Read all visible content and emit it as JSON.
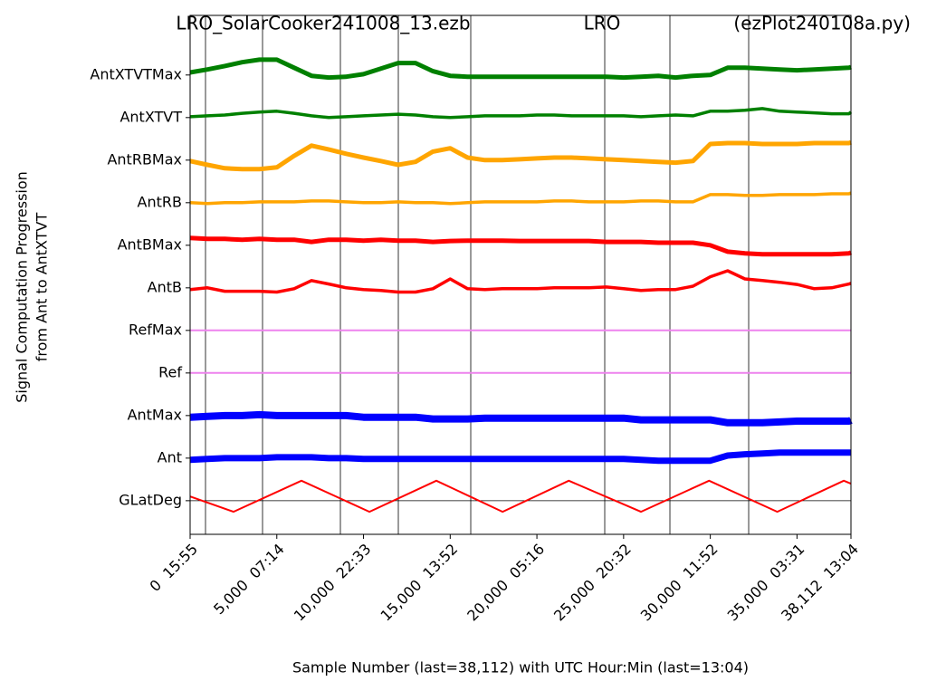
{
  "chart_data": {
    "type": "line",
    "title_left": "LRO_SolarCooker241008_13.ezb",
    "title_center": "LRO",
    "title_right": "(ezPlot240108a.py)",
    "ylabel": [
      "Signal Computation Progression",
      "from Ant to AntXTVT"
    ],
    "xlabel": "Sample Number (last=38,112) with UTC Hour:Min (last=13:04)",
    "xlim": [
      0,
      38112
    ],
    "ylim": [
      -0.79,
      11.4
    ],
    "xticks": [
      {
        "value": 0,
        "label": "0  15:55"
      },
      {
        "value": 5000,
        "label": "5,000  07:14"
      },
      {
        "value": 10000,
        "label": "10,000  22:33"
      },
      {
        "value": 15000,
        "label": "15,000  13:52"
      },
      {
        "value": 20000,
        "label": "20,000  05:16"
      },
      {
        "value": 25000,
        "label": "25,000  20:32"
      },
      {
        "value": 30000,
        "label": "30,000  11:52"
      },
      {
        "value": 35000,
        "label": "35,000  03:31"
      },
      {
        "value": 38112,
        "label": "38,112  13:04"
      }
    ],
    "yticks": [
      {
        "value": 0,
        "label": "GLatDeg"
      },
      {
        "value": 1,
        "label": "Ant"
      },
      {
        "value": 2,
        "label": "AntMax"
      },
      {
        "value": 3,
        "label": "Ref"
      },
      {
        "value": 4,
        "label": "RefMax"
      },
      {
        "value": 5,
        "label": "AntB"
      },
      {
        "value": 6,
        "label": "AntBMax"
      },
      {
        "value": 7,
        "label": "AntRB"
      },
      {
        "value": 8,
        "label": "AntRBMax"
      },
      {
        "value": 9,
        "label": "AntXTVT"
      },
      {
        "value": 10,
        "label": "AntXTVTMax"
      }
    ],
    "vlines": [
      888,
      4177,
      8667,
      12008,
      16185,
      23912,
      27671,
      32213
    ],
    "hlines": [
      0
    ],
    "x": [
      0,
      1000,
      2000,
      3000,
      4000,
      5000,
      6000,
      7000,
      8000,
      9000,
      10000,
      11000,
      12000,
      13000,
      14000,
      15000,
      16000,
      17000,
      18000,
      19000,
      20000,
      21000,
      22000,
      23000,
      24000,
      25000,
      26000,
      27000,
      28000,
      29000,
      30000,
      31000,
      32000,
      33000,
      34000,
      35000,
      36000,
      37000,
      38000,
      38112
    ],
    "series": [
      {
        "color": "#ff0000",
        "x": [
          0,
          2500,
          6420,
          10340,
          14200,
          18020,
          21840,
          26000,
          29930,
          33860,
          37700,
          38112
        ],
        "values": [
          0.1,
          -0.26,
          0.47,
          -0.26,
          0.47,
          -0.26,
          0.47,
          -0.26,
          0.47,
          -0.26,
          0.47,
          0.4
        ]
      },
      {
        "color": "#0000ff",
        "values": [
          0.96,
          0.98,
          1.0,
          1.0,
          1.0,
          1.02,
          1.02,
          1.02,
          1.0,
          1.0,
          0.98,
          0.98,
          0.98,
          0.98,
          0.98,
          0.98,
          0.98,
          0.98,
          0.98,
          0.98,
          0.98,
          0.98,
          0.98,
          0.98,
          0.98,
          0.98,
          0.96,
          0.94,
          0.94,
          0.94,
          0.94,
          1.06,
          1.09,
          1.11,
          1.13,
          1.13,
          1.13,
          1.13,
          1.13,
          1.13
        ]
      },
      {
        "color": "#0000ff",
        "values": [
          1.96,
          1.98,
          2.0,
          2.0,
          2.02,
          2.0,
          2.0,
          2.0,
          2.0,
          2.0,
          1.96,
          1.96,
          1.96,
          1.96,
          1.92,
          1.92,
          1.92,
          1.94,
          1.94,
          1.94,
          1.94,
          1.94,
          1.94,
          1.94,
          1.94,
          1.94,
          1.9,
          1.9,
          1.9,
          1.9,
          1.9,
          1.83,
          1.83,
          1.83,
          1.85,
          1.87,
          1.87,
          1.87,
          1.87,
          1.89
        ]
      },
      {
        "color": "#ee82ee",
        "values": [
          3,
          3,
          3,
          3,
          3,
          3,
          3,
          3,
          3,
          3,
          3,
          3,
          3,
          3,
          3,
          3,
          3,
          3,
          3,
          3,
          3,
          3,
          3,
          3,
          3,
          3,
          3,
          3,
          3,
          3,
          3,
          3,
          3,
          3,
          3,
          3,
          3,
          3,
          3,
          3
        ]
      },
      {
        "color": "#ee82ee",
        "values": [
          4,
          4,
          4,
          4,
          4,
          4,
          4,
          4,
          4,
          4,
          4,
          4,
          4,
          4,
          4,
          4,
          4,
          4,
          4,
          4,
          4,
          4,
          4,
          4,
          4,
          4,
          4,
          4,
          4,
          4,
          4,
          4,
          4,
          4,
          4,
          4,
          4,
          4,
          4,
          4
        ]
      },
      {
        "color": "#ff0000",
        "values": [
          4.96,
          5.0,
          4.92,
          4.92,
          4.92,
          4.9,
          4.98,
          5.17,
          5.09,
          5.0,
          4.96,
          4.94,
          4.9,
          4.9,
          4.98,
          5.21,
          4.98,
          4.96,
          4.98,
          4.98,
          4.98,
          5.0,
          5.0,
          5.0,
          5.02,
          4.98,
          4.94,
          4.96,
          4.96,
          5.04,
          5.26,
          5.4,
          5.21,
          5.17,
          5.13,
          5.08,
          4.98,
          5.0,
          5.09,
          5.11
        ]
      },
      {
        "color": "#ff0000",
        "values": [
          6.17,
          6.15,
          6.15,
          6.13,
          6.15,
          6.13,
          6.13,
          6.08,
          6.13,
          6.13,
          6.11,
          6.13,
          6.11,
          6.11,
          6.08,
          6.1,
          6.11,
          6.11,
          6.11,
          6.1,
          6.1,
          6.1,
          6.1,
          6.1,
          6.08,
          6.08,
          6.08,
          6.06,
          6.06,
          6.06,
          6.0,
          5.85,
          5.81,
          5.79,
          5.79,
          5.79,
          5.79,
          5.79,
          5.81,
          5.83
        ]
      },
      {
        "color": "#ffa500",
        "values": [
          7.0,
          6.98,
          7.0,
          7.0,
          7.02,
          7.02,
          7.02,
          7.04,
          7.04,
          7.02,
          7.0,
          7.0,
          7.02,
          7.0,
          7.0,
          6.98,
          7.0,
          7.02,
          7.02,
          7.02,
          7.02,
          7.04,
          7.04,
          7.02,
          7.02,
          7.02,
          7.04,
          7.04,
          7.02,
          7.02,
          7.19,
          7.19,
          7.17,
          7.17,
          7.19,
          7.19,
          7.19,
          7.21,
          7.21,
          7.23
        ]
      },
      {
        "color": "#ffa500",
        "values": [
          7.98,
          7.89,
          7.81,
          7.79,
          7.79,
          7.83,
          8.1,
          8.34,
          8.25,
          8.15,
          8.06,
          7.98,
          7.89,
          7.96,
          8.2,
          8.28,
          8.06,
          8.0,
          8.0,
          8.02,
          8.04,
          8.06,
          8.06,
          8.04,
          8.02,
          8.0,
          7.98,
          7.96,
          7.94,
          7.98,
          8.38,
          8.4,
          8.4,
          8.38,
          8.38,
          8.38,
          8.4,
          8.4,
          8.4,
          8.42
        ]
      },
      {
        "color": "#008000",
        "values": [
          9.02,
          9.04,
          9.06,
          9.1,
          9.13,
          9.15,
          9.1,
          9.04,
          9.0,
          9.02,
          9.04,
          9.06,
          9.08,
          9.06,
          9.02,
          9.0,
          9.02,
          9.04,
          9.04,
          9.04,
          9.06,
          9.06,
          9.04,
          9.04,
          9.04,
          9.04,
          9.02,
          9.04,
          9.06,
          9.04,
          9.15,
          9.15,
          9.17,
          9.21,
          9.15,
          9.13,
          9.11,
          9.09,
          9.09,
          9.13
        ]
      },
      {
        "color": "#008000",
        "values": [
          10.06,
          10.13,
          10.21,
          10.3,
          10.36,
          10.36,
          10.17,
          9.98,
          9.94,
          9.96,
          10.02,
          10.15,
          10.28,
          10.28,
          10.09,
          9.98,
          9.96,
          9.96,
          9.96,
          9.96,
          9.96,
          9.96,
          9.96,
          9.96,
          9.96,
          9.94,
          9.96,
          9.98,
          9.94,
          9.98,
          10.0,
          10.17,
          10.17,
          10.15,
          10.13,
          10.11,
          10.13,
          10.15,
          10.17,
          10.19
        ]
      }
    ]
  }
}
